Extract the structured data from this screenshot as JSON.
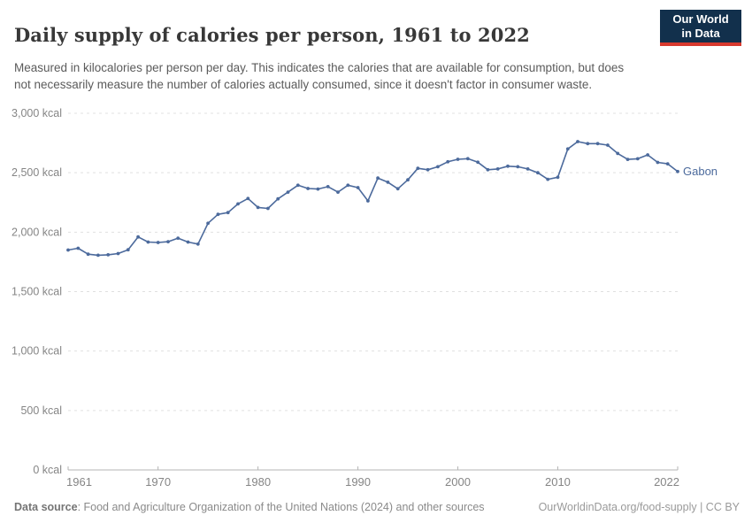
{
  "header": {
    "title": "Daily supply of calories per person, 1961 to 2022",
    "subtitle": "Measured in kilocalories per person per day. This indicates the calories that are available for consumption, but does not necessarily measure the number of calories actually consumed, since it doesn't factor in consumer waste.",
    "logo": {
      "line1": "Our World",
      "line2": "in Data"
    }
  },
  "chart_data": {
    "type": "line",
    "title": "Daily supply of calories per person, 1961 to 2022",
    "entity_label": "Gabon",
    "unit": "kcal",
    "ylim": [
      0,
      3000
    ],
    "grid": true,
    "legend_position": "end-of-line",
    "line_color": "#4C6A9C",
    "years": [
      1961,
      1962,
      1963,
      1964,
      1965,
      1966,
      1967,
      1968,
      1969,
      1970,
      1971,
      1972,
      1973,
      1974,
      1975,
      1976,
      1977,
      1978,
      1979,
      1980,
      1981,
      1982,
      1983,
      1984,
      1985,
      1986,
      1987,
      1988,
      1989,
      1990,
      1991,
      1992,
      1993,
      1994,
      1995,
      1996,
      1997,
      1998,
      1999,
      2000,
      2001,
      2002,
      2003,
      2004,
      2005,
      2006,
      2007,
      2008,
      2009,
      2010,
      2011,
      2012,
      2013,
      2014,
      2015,
      2016,
      2017,
      2018,
      2019,
      2020,
      2021,
      2022
    ],
    "values": [
      1850,
      1865,
      1815,
      1806,
      1810,
      1820,
      1852,
      1960,
      1917,
      1913,
      1920,
      1950,
      1917,
      1900,
      2075,
      2150,
      2165,
      2238,
      2283,
      2208,
      2200,
      2280,
      2337,
      2395,
      2367,
      2363,
      2383,
      2337,
      2395,
      2375,
      2263,
      2455,
      2420,
      2365,
      2440,
      2537,
      2525,
      2550,
      2592,
      2613,
      2618,
      2588,
      2525,
      2532,
      2555,
      2550,
      2532,
      2500,
      2445,
      2462,
      2700,
      2762,
      2745,
      2745,
      2732,
      2662,
      2612,
      2617,
      2650,
      2587,
      2575,
      2510
    ],
    "y_ticks": [
      {
        "value": 0,
        "label": "0 kcal"
      },
      {
        "value": 500,
        "label": "500 kcal"
      },
      {
        "value": 1000,
        "label": "1,000 kcal"
      },
      {
        "value": 1500,
        "label": "1,500 kcal"
      },
      {
        "value": 2000,
        "label": "2,000 kcal"
      },
      {
        "value": 2500,
        "label": "2,500 kcal"
      },
      {
        "value": 3000,
        "label": "3,000 kcal"
      }
    ],
    "x_ticks": [
      1961,
      1970,
      1980,
      1990,
      2000,
      2010,
      2022
    ]
  },
  "footer": {
    "source_bold": "Data source",
    "source_rest": ": Food and Agriculture Organization of the United Nations (2024) and other sources",
    "link_text": "OurWorldinData.org/food-supply | CC BY"
  }
}
